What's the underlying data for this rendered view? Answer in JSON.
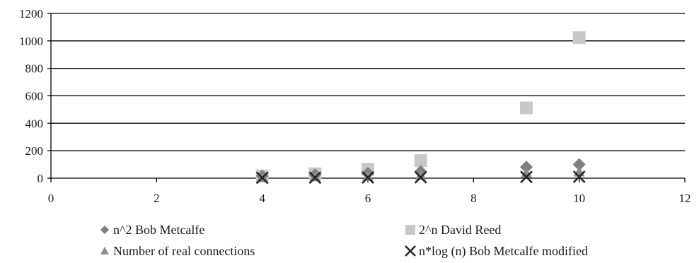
{
  "chart_data": {
    "type": "scatter",
    "title": "",
    "xlabel": "",
    "ylabel": "",
    "xlim": [
      0,
      12
    ],
    "ylim": [
      0,
      1200
    ],
    "xticks": [
      "0",
      "2",
      "4",
      "6",
      "8",
      "10",
      "12"
    ],
    "yticks": [
      "0",
      "200",
      "400",
      "600",
      "800",
      "1000",
      "1200"
    ],
    "grid": "horizontal",
    "legend_position": "bottom",
    "series": [
      {
        "name": "n^2 Bob Metcalfe",
        "marker": "diamond",
        "color": "#7f7f7f",
        "points": [
          [
            4,
            16
          ],
          [
            5,
            25
          ],
          [
            6,
            36
          ],
          [
            7,
            49
          ],
          [
            9,
            81
          ],
          [
            10,
            100
          ]
        ]
      },
      {
        "name": "2^n David Reed",
        "marker": "square",
        "color": "#c8c8c8",
        "points": [
          [
            4,
            16
          ],
          [
            5,
            32
          ],
          [
            6,
            64
          ],
          [
            7,
            128
          ],
          [
            9,
            512
          ],
          [
            10,
            1024
          ]
        ]
      },
      {
        "name": "Number of real connections",
        "marker": "triangle",
        "color": "#8c8c8c",
        "points": [
          [
            4,
            6
          ],
          [
            5,
            10
          ],
          [
            6,
            15
          ],
          [
            7,
            21
          ],
          [
            9,
            36
          ],
          [
            10,
            45
          ]
        ]
      },
      {
        "name": "n*log (n) Bob Metcalfe modified",
        "marker": "x",
        "color": "#262626",
        "points": [
          [
            4,
            2.4
          ],
          [
            5,
            3.5
          ],
          [
            6,
            4.7
          ],
          [
            7,
            5.9
          ],
          [
            9,
            8.6
          ],
          [
            10,
            10
          ]
        ]
      }
    ]
  }
}
